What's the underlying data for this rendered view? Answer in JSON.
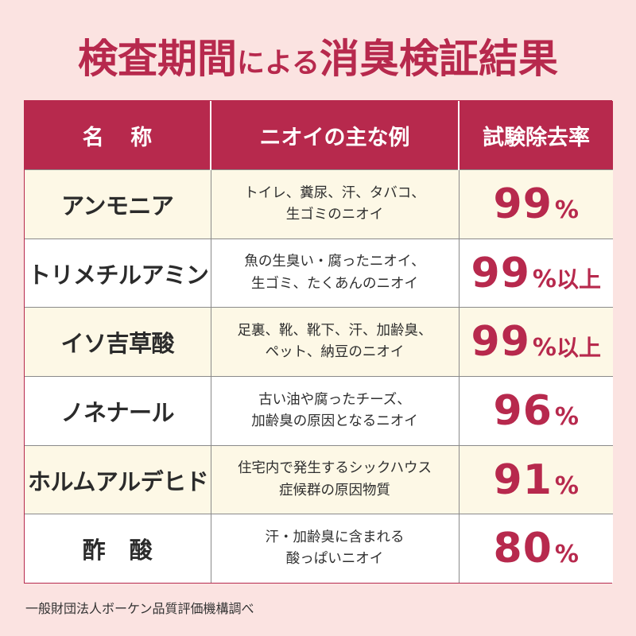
{
  "title": {
    "part1": "検査期間",
    "part2": "による",
    "part3": "消臭検証結果"
  },
  "table": {
    "headers": {
      "name": "名 称",
      "example": "ニオイの主な例",
      "rate": "試験除去率"
    },
    "rows": [
      {
        "name": "アンモニア",
        "example_lines": [
          "トイレ、糞尿、汗、タバコ、",
          "生ゴミのニオイ"
        ],
        "rate_value": "99",
        "rate_unit": "%",
        "rate_suffix": ""
      },
      {
        "name": "トリメチルアミン",
        "example_lines": [
          "魚の生臭い・腐ったニオイ、",
          "生ゴミ、たくあんのニオイ"
        ],
        "rate_value": "99",
        "rate_unit": "%",
        "rate_suffix": "以上"
      },
      {
        "name": "イソ吉草酸",
        "example_lines": [
          "足裏、靴、靴下、汗、加齢臭、",
          "ペット、納豆のニオイ"
        ],
        "rate_value": "99",
        "rate_unit": "%",
        "rate_suffix": "以上"
      },
      {
        "name": "ノネナール",
        "example_lines": [
          "古い油や腐ったチーズ、",
          "加齢臭の原因となるニオイ"
        ],
        "rate_value": "96",
        "rate_unit": "%",
        "rate_suffix": ""
      },
      {
        "name": "ホルムアルデヒド",
        "example_lines": [
          "住宅内で発生するシックハウス",
          "症候群の原因物質"
        ],
        "rate_value": "91",
        "rate_unit": "%",
        "rate_suffix": ""
      },
      {
        "name": "酢 酸",
        "example_lines": [
          "汗・加齢臭に含まれる",
          "酸っぱいニオイ"
        ],
        "rate_value": "80",
        "rate_unit": "%",
        "rate_suffix": ""
      }
    ]
  },
  "footnote": "一般財団法人ボーケン品質評価機構調べ",
  "colors": {
    "accent": "#b7294d",
    "background": "#fbe3e1",
    "row_tint": "#fdf8e6"
  }
}
